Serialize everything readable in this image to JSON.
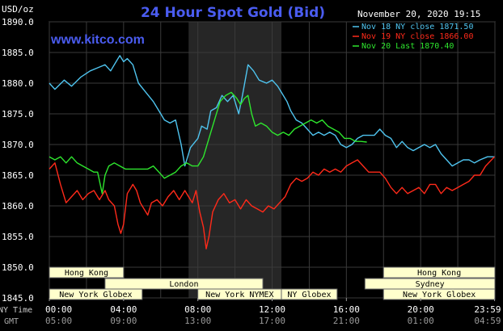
{
  "header": {
    "title": "24 Hour Spot Gold (Bid)",
    "unit": "USD/oz",
    "timestamp": "November 20, 2020 19:15",
    "website": "www.kitco.com"
  },
  "time_labels": {
    "ny_row_label": "NY Time",
    "gmt_row_label": "GMT",
    "ny": [
      "00:00",
      "04:00",
      "08:00",
      "12:00",
      "16:00",
      "20:00",
      "23:59"
    ],
    "gmt": [
      "05:00",
      "09:00",
      "13:00",
      "17:00",
      "21:00",
      "01:00",
      "04:59"
    ]
  },
  "sessions": [
    {
      "label": "Hong Kong",
      "row": 0,
      "start": 0,
      "end": 4
    },
    {
      "label": "Hong Kong",
      "row": 0,
      "start": 18,
      "end": 24
    },
    {
      "label": "London",
      "row": 1,
      "start": 3,
      "end": 11.5
    },
    {
      "label": "Sydney",
      "row": 1,
      "start": 17,
      "end": 24
    },
    {
      "label": "New York Globex",
      "row": 2,
      "start": 0,
      "end": 5
    },
    {
      "label": "New York NYMEX",
      "row": 2,
      "start": 8,
      "end": 12.5
    },
    {
      "label": "NY Globex",
      "row": 2,
      "start": 12.5,
      "end": 15.5
    },
    {
      "label": "New York Globex",
      "row": 2,
      "start": 18,
      "end": 24
    }
  ],
  "chart_data": {
    "type": "line",
    "title": "24 Hour Spot Gold (Bid)",
    "ylabel": "USD/oz",
    "ylim": [
      1845,
      1890
    ],
    "yticks": [
      "1890.0",
      "1885.0",
      "1880.0",
      "1875.0",
      "1870.0",
      "1865.0",
      "1860.0",
      "1855.0",
      "1850.0",
      "1845.0"
    ],
    "xlim": [
      0,
      24
    ],
    "x_unit": "hours (NY Time)",
    "xticks_ny": [
      "00:00",
      "04:00",
      "08:00",
      "12:00",
      "16:00",
      "20:00",
      "23:59"
    ],
    "xticks_gmt": [
      "05:00",
      "09:00",
      "13:00",
      "17:00",
      "21:00",
      "01:00",
      "04:59"
    ],
    "highlight_band": [
      7.5,
      12.5
    ],
    "grid": true,
    "legend_position": "top-right",
    "series": [
      {
        "name": "Nov 18 NY close 1871.50",
        "color": "#4fc4ef",
        "points": [
          [
            0,
            1880.0
          ],
          [
            0.3,
            1879.0
          ],
          [
            0.8,
            1880.5
          ],
          [
            1.2,
            1879.5
          ],
          [
            1.7,
            1881.0
          ],
          [
            2.2,
            1882.0
          ],
          [
            2.6,
            1882.5
          ],
          [
            3.0,
            1883.0
          ],
          [
            3.3,
            1882.0
          ],
          [
            3.6,
            1883.5
          ],
          [
            3.8,
            1884.5
          ],
          [
            4.0,
            1883.5
          ],
          [
            4.2,
            1884.0
          ],
          [
            4.5,
            1883.0
          ],
          [
            4.8,
            1880.0
          ],
          [
            5.2,
            1878.5
          ],
          [
            5.6,
            1877.0
          ],
          [
            6.0,
            1875.0
          ],
          [
            6.2,
            1874.0
          ],
          [
            6.5,
            1873.5
          ],
          [
            6.8,
            1874.0
          ],
          [
            7.1,
            1870.0
          ],
          [
            7.3,
            1866.5
          ],
          [
            7.6,
            1869.5
          ],
          [
            8.0,
            1871.0
          ],
          [
            8.2,
            1873.0
          ],
          [
            8.5,
            1872.5
          ],
          [
            8.7,
            1875.5
          ],
          [
            9.0,
            1876.0
          ],
          [
            9.3,
            1878.0
          ],
          [
            9.6,
            1877.0
          ],
          [
            9.9,
            1878.0
          ],
          [
            10.2,
            1875.0
          ],
          [
            10.4,
            1878.0
          ],
          [
            10.7,
            1883.0
          ],
          [
            11.0,
            1882.0
          ],
          [
            11.3,
            1880.5
          ],
          [
            11.7,
            1880.0
          ],
          [
            12.0,
            1880.5
          ],
          [
            12.3,
            1879.5
          ],
          [
            12.5,
            1878.5
          ],
          [
            12.8,
            1877.0
          ],
          [
            13.0,
            1875.5
          ],
          [
            13.3,
            1874.0
          ],
          [
            13.6,
            1873.5
          ],
          [
            13.9,
            1872.5
          ],
          [
            14.2,
            1871.5
          ],
          [
            14.5,
            1872.0
          ],
          [
            14.8,
            1871.5
          ],
          [
            15.1,
            1872.0
          ],
          [
            15.4,
            1871.5
          ],
          [
            15.7,
            1870.0
          ],
          [
            16.0,
            1869.5
          ],
          [
            16.3,
            1870.0
          ],
          [
            16.6,
            1871.0
          ],
          [
            16.9,
            1871.5
          ],
          [
            17.2,
            1871.5
          ],
          [
            17.5,
            1871.5
          ],
          [
            17.8,
            1872.5
          ],
          [
            18.1,
            1871.5
          ],
          [
            18.4,
            1871.0
          ],
          [
            18.7,
            1869.5
          ],
          [
            19.0,
            1870.5
          ],
          [
            19.3,
            1869.5
          ],
          [
            19.6,
            1869.0
          ],
          [
            19.9,
            1869.5
          ],
          [
            20.2,
            1870.0
          ],
          [
            20.5,
            1869.5
          ],
          [
            20.8,
            1870.0
          ],
          [
            21.1,
            1868.5
          ],
          [
            21.4,
            1867.5
          ],
          [
            21.7,
            1866.5
          ],
          [
            22.0,
            1867.0
          ],
          [
            22.3,
            1867.5
          ],
          [
            22.6,
            1867.5
          ],
          [
            22.9,
            1867.0
          ],
          [
            23.2,
            1867.5
          ],
          [
            23.6,
            1868.0
          ],
          [
            23.98,
            1868.0
          ]
        ]
      },
      {
        "name": "Nov 19 NY close 1866.00",
        "color": "#ff2a1a",
        "points": [
          [
            0,
            1866.0
          ],
          [
            0.3,
            1867.0
          ],
          [
            0.6,
            1863.5
          ],
          [
            0.9,
            1860.5
          ],
          [
            1.2,
            1861.5
          ],
          [
            1.5,
            1862.5
          ],
          [
            1.8,
            1861.0
          ],
          [
            2.1,
            1862.0
          ],
          [
            2.4,
            1862.5
          ],
          [
            2.7,
            1861.0
          ],
          [
            3.0,
            1862.5
          ],
          [
            3.2,
            1861.0
          ],
          [
            3.5,
            1860.0
          ],
          [
            3.7,
            1857.0
          ],
          [
            3.85,
            1855.5
          ],
          [
            4.0,
            1857.0
          ],
          [
            4.2,
            1862.0
          ],
          [
            4.5,
            1863.5
          ],
          [
            4.7,
            1862.5
          ],
          [
            4.9,
            1860.5
          ],
          [
            5.1,
            1859.5
          ],
          [
            5.3,
            1858.5
          ],
          [
            5.5,
            1860.5
          ],
          [
            5.8,
            1861.0
          ],
          [
            6.1,
            1860.0
          ],
          [
            6.4,
            1861.5
          ],
          [
            6.7,
            1862.5
          ],
          [
            7.0,
            1861.0
          ],
          [
            7.3,
            1862.5
          ],
          [
            7.5,
            1861.5
          ],
          [
            7.7,
            1860.5
          ],
          [
            7.9,
            1862.5
          ],
          [
            8.1,
            1859.0
          ],
          [
            8.3,
            1856.5
          ],
          [
            8.45,
            1853.0
          ],
          [
            8.6,
            1855.0
          ],
          [
            8.8,
            1859.0
          ],
          [
            9.1,
            1861.0
          ],
          [
            9.4,
            1862.0
          ],
          [
            9.7,
            1860.5
          ],
          [
            10.0,
            1861.0
          ],
          [
            10.3,
            1859.5
          ],
          [
            10.6,
            1861.0
          ],
          [
            10.9,
            1860.0
          ],
          [
            11.2,
            1859.5
          ],
          [
            11.5,
            1859.0
          ],
          [
            11.8,
            1860.0
          ],
          [
            12.1,
            1859.5
          ],
          [
            12.4,
            1860.5
          ],
          [
            12.7,
            1861.5
          ],
          [
            13.0,
            1863.5
          ],
          [
            13.3,
            1864.5
          ],
          [
            13.6,
            1864.0
          ],
          [
            13.9,
            1864.5
          ],
          [
            14.2,
            1865.5
          ],
          [
            14.5,
            1865.0
          ],
          [
            14.8,
            1866.0
          ],
          [
            15.1,
            1865.5
          ],
          [
            15.4,
            1866.0
          ],
          [
            15.7,
            1865.5
          ],
          [
            16.0,
            1866.5
          ],
          [
            16.3,
            1867.0
          ],
          [
            16.6,
            1867.5
          ],
          [
            16.9,
            1866.5
          ],
          [
            17.2,
            1865.5
          ],
          [
            17.5,
            1865.5
          ],
          [
            17.8,
            1865.5
          ],
          [
            18.1,
            1864.5
          ],
          [
            18.4,
            1863.0
          ],
          [
            18.7,
            1862.0
          ],
          [
            19.0,
            1863.0
          ],
          [
            19.3,
            1862.0
          ],
          [
            19.6,
            1862.5
          ],
          [
            19.9,
            1863.0
          ],
          [
            20.2,
            1862.0
          ],
          [
            20.5,
            1863.5
          ],
          [
            20.8,
            1863.5
          ],
          [
            21.1,
            1862.0
          ],
          [
            21.4,
            1863.0
          ],
          [
            21.7,
            1862.5
          ],
          [
            22.0,
            1863.0
          ],
          [
            22.3,
            1863.5
          ],
          [
            22.6,
            1864.0
          ],
          [
            22.9,
            1865.0
          ],
          [
            23.2,
            1865.0
          ],
          [
            23.5,
            1866.5
          ],
          [
            23.98,
            1868.0
          ]
        ]
      },
      {
        "name": "Nov 20 Last 1870.40",
        "color": "#2ee62e",
        "points": [
          [
            0,
            1868.0
          ],
          [
            0.3,
            1867.5
          ],
          [
            0.6,
            1868.0
          ],
          [
            0.9,
            1867.0
          ],
          [
            1.2,
            1868.0
          ],
          [
            1.5,
            1867.0
          ],
          [
            1.8,
            1866.5
          ],
          [
            2.1,
            1866.0
          ],
          [
            2.4,
            1865.5
          ],
          [
            2.6,
            1865.5
          ],
          [
            2.85,
            1862.0
          ],
          [
            3.0,
            1865.0
          ],
          [
            3.2,
            1866.5
          ],
          [
            3.5,
            1867.0
          ],
          [
            3.8,
            1866.5
          ],
          [
            4.1,
            1866.0
          ],
          [
            4.4,
            1866.0
          ],
          [
            4.7,
            1866.0
          ],
          [
            5.0,
            1866.0
          ],
          [
            5.3,
            1866.0
          ],
          [
            5.6,
            1866.5
          ],
          [
            5.9,
            1865.5
          ],
          [
            6.2,
            1864.5
          ],
          [
            6.5,
            1865.0
          ],
          [
            6.8,
            1865.5
          ],
          [
            7.1,
            1866.5
          ],
          [
            7.4,
            1867.0
          ],
          [
            7.7,
            1866.5
          ],
          [
            8.0,
            1866.5
          ],
          [
            8.3,
            1868.0
          ],
          [
            8.6,
            1871.0
          ],
          [
            8.9,
            1874.0
          ],
          [
            9.2,
            1877.0
          ],
          [
            9.5,
            1878.0
          ],
          [
            9.8,
            1878.5
          ],
          [
            10.1,
            1877.5
          ],
          [
            10.3,
            1876.5
          ],
          [
            10.5,
            1877.5
          ],
          [
            10.7,
            1878.0
          ],
          [
            10.9,
            1875.0
          ],
          [
            11.1,
            1873.0
          ],
          [
            11.4,
            1873.5
          ],
          [
            11.7,
            1873.0
          ],
          [
            12.0,
            1872.0
          ],
          [
            12.3,
            1871.5
          ],
          [
            12.6,
            1872.0
          ],
          [
            12.9,
            1871.5
          ],
          [
            13.2,
            1872.5
          ],
          [
            13.5,
            1873.0
          ],
          [
            13.8,
            1873.5
          ],
          [
            14.1,
            1874.0
          ],
          [
            14.4,
            1873.5
          ],
          [
            14.7,
            1874.0
          ],
          [
            15.0,
            1873.0
          ],
          [
            15.3,
            1872.5
          ],
          [
            15.6,
            1872.0
          ],
          [
            15.9,
            1871.0
          ],
          [
            16.2,
            1871.0
          ],
          [
            16.5,
            1870.5
          ],
          [
            16.8,
            1870.5
          ],
          [
            17.1,
            1870.4
          ]
        ]
      }
    ]
  }
}
